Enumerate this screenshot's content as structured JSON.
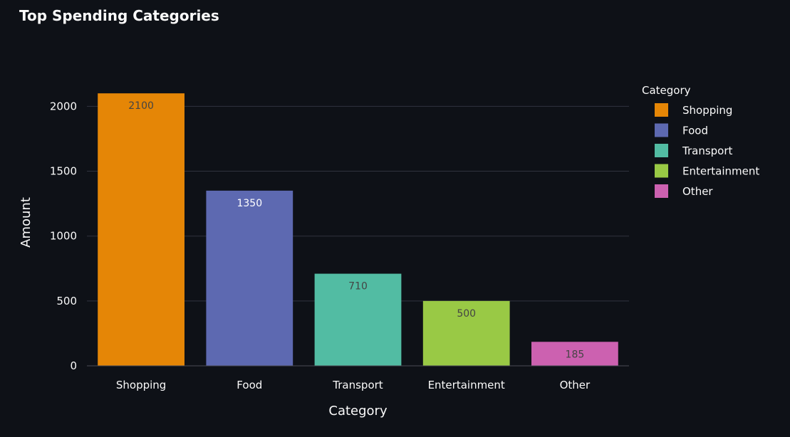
{
  "chart_data": {
    "type": "bar",
    "title": "Top Spending Categories",
    "xlabel": "Category",
    "ylabel": "Amount",
    "categories": [
      "Shopping",
      "Food",
      "Transport",
      "Entertainment",
      "Other"
    ],
    "values": [
      2100,
      1350,
      710,
      500,
      185
    ],
    "data_labels": [
      "2100",
      "1350",
      "710",
      "500",
      "185"
    ],
    "colors": [
      "#e58606",
      "#5d69b1",
      "#52bca3",
      "#99c945",
      "#cc61b0"
    ],
    "label_colors": [
      "#444444",
      "#ffffff",
      "#444444",
      "#444444",
      "#444444"
    ],
    "y_ticks": [
      0,
      500,
      1000,
      1500,
      2000
    ],
    "ylim": [
      0,
      2210.5
    ],
    "grid": true,
    "legend": {
      "title": "Category",
      "placement": "right",
      "entries": [
        "Shopping",
        "Food",
        "Transport",
        "Entertainment",
        "Other"
      ]
    },
    "background": "#0e1117",
    "grid_color": "#31333f"
  }
}
